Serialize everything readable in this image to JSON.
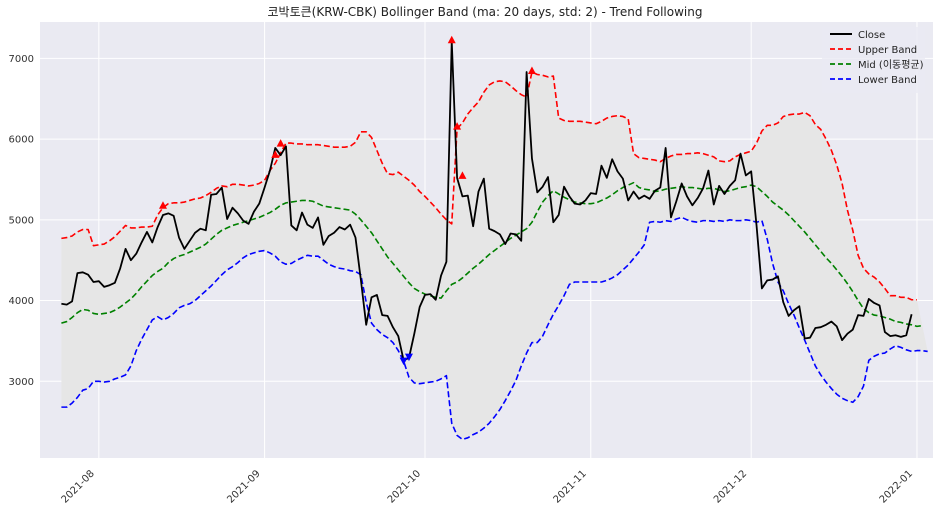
{
  "chart_data": {
    "type": "line",
    "title": "코박토큰(KRW-CBK) Bollinger Band (ma: 20 days, std: 2) - Trend Following",
    "xlabel": "",
    "ylabel": "",
    "grid": true,
    "legend_position": "top-right",
    "xlim": [
      "2021-07-21",
      "2022-01-04"
    ],
    "ylim": [
      2050,
      7450
    ],
    "x_ticks": [
      "2021-08",
      "2021-09",
      "2021-10",
      "2021-11",
      "2021-12",
      "2022-01"
    ],
    "y_ticks": [
      3000,
      4000,
      5000,
      6000,
      7000
    ],
    "start_date": "2021-07-25",
    "colors": {
      "close": "#000000",
      "upper": "#ff0000",
      "mid": "#008000",
      "lower": "#0000ff",
      "band_fill": "#e6e6e6",
      "plot_bg": "#eaeaf2",
      "grid": "#ffffff"
    },
    "series": [
      {
        "name": "Close",
        "style": "solid",
        "values": [
          3960,
          3950,
          3990,
          4340,
          4350,
          4320,
          4230,
          4240,
          4170,
          4190,
          4220,
          4400,
          4640,
          4500,
          4580,
          4720,
          4850,
          4720,
          4910,
          5060,
          5080,
          5050,
          4780,
          4640,
          4740,
          4840,
          4890,
          4870,
          5310,
          5320,
          5400,
          5010,
          5150,
          5080,
          4990,
          4950,
          5100,
          5200,
          5400,
          5610,
          5890,
          5800,
          5910,
          4930,
          4870,
          5090,
          4940,
          4900,
          5030,
          4690,
          4800,
          4840,
          4910,
          4880,
          4940,
          4780,
          4260,
          3700,
          4040,
          4070,
          3820,
          3810,
          3670,
          3560,
          3260,
          3290,
          3590,
          3920,
          4070,
          4080,
          4010,
          4310,
          4480,
          7210,
          5520,
          5290,
          5300,
          4920,
          5350,
          5510,
          4890,
          4860,
          4820,
          4700,
          4830,
          4820,
          4740,
          6830,
          5760,
          5340,
          5410,
          5530,
          4970,
          5060,
          5410,
          5290,
          5200,
          5190,
          5240,
          5330,
          5320,
          5670,
          5520,
          5750,
          5600,
          5510,
          5240,
          5350,
          5260,
          5300,
          5260,
          5360,
          5400,
          5890,
          5030,
          5230,
          5450,
          5290,
          5180,
          5270,
          5390,
          5610,
          5190,
          5420,
          5320,
          5420,
          5490,
          5820,
          5550,
          5600,
          4930,
          4150,
          4250,
          4260,
          4300,
          3980,
          3810,
          3880,
          3930,
          3530,
          3540,
          3660,
          3670,
          3700,
          3740,
          3680,
          3510,
          3590,
          3640,
          3820,
          3810,
          4020,
          3970,
          3940,
          3610,
          3560,
          3570,
          3550,
          3570,
          3830
        ]
      },
      {
        "name": "Upper Band",
        "style": "dashed",
        "values": [
          4770,
          4780,
          4800,
          4850,
          4880,
          4880,
          4680,
          4690,
          4700,
          4740,
          4790,
          4860,
          4930,
          4900,
          4900,
          4910,
          4910,
          4920,
          5060,
          5150,
          5200,
          5210,
          5210,
          5220,
          5240,
          5260,
          5270,
          5300,
          5340,
          5390,
          5420,
          5410,
          5440,
          5440,
          5430,
          5420,
          5430,
          5450,
          5490,
          5610,
          5700,
          5830,
          5950,
          5950,
          5940,
          5940,
          5930,
          5930,
          5930,
          5920,
          5910,
          5900,
          5900,
          5900,
          5910,
          5960,
          6090,
          6090,
          6020,
          5860,
          5700,
          5570,
          5560,
          5590,
          5540,
          5490,
          5430,
          5350,
          5290,
          5220,
          5150,
          5070,
          5000,
          4950,
          6130,
          6200,
          6310,
          6390,
          6460,
          6580,
          6670,
          6710,
          6720,
          6710,
          6660,
          6600,
          6550,
          6520,
          6830,
          6800,
          6790,
          6770,
          6780,
          6260,
          6230,
          6220,
          6220,
          6220,
          6210,
          6200,
          6190,
          6220,
          6260,
          6280,
          6290,
          6280,
          6250,
          5820,
          5770,
          5760,
          5750,
          5740,
          5720,
          5760,
          5790,
          5810,
          5810,
          5820,
          5820,
          5830,
          5820,
          5800,
          5780,
          5730,
          5720,
          5730,
          5780,
          5810,
          5830,
          5850,
          5950,
          6100,
          6170,
          6170,
          6200,
          6280,
          6300,
          6310,
          6310,
          6330,
          6290,
          6180,
          6120,
          6000,
          5860,
          5680,
          5450,
          5120,
          4870,
          4560,
          4400,
          4330,
          4290,
          4230,
          4150,
          4060,
          4060,
          4040,
          4040,
          4010,
          4010
        ]
      },
      {
        "name": "Mid (이동평균)",
        "style": "dashed",
        "values": [
          3720,
          3740,
          3790,
          3850,
          3890,
          3880,
          3840,
          3830,
          3840,
          3850,
          3880,
          3920,
          3970,
          4020,
          4090,
          4170,
          4240,
          4310,
          4360,
          4400,
          4470,
          4520,
          4550,
          4570,
          4600,
          4630,
          4660,
          4700,
          4760,
          4820,
          4870,
          4900,
          4930,
          4950,
          4970,
          4990,
          5010,
          5030,
          5060,
          5090,
          5130,
          5180,
          5210,
          5220,
          5230,
          5240,
          5240,
          5230,
          5200,
          5170,
          5160,
          5150,
          5140,
          5130,
          5120,
          5070,
          5000,
          4920,
          4840,
          4740,
          4640,
          4540,
          4460,
          4380,
          4300,
          4220,
          4150,
          4110,
          4080,
          4060,
          4040,
          4030,
          4120,
          4200,
          4230,
          4280,
          4340,
          4400,
          4450,
          4510,
          4570,
          4620,
          4670,
          4720,
          4770,
          4810,
          4850,
          4890,
          4970,
          5100,
          5220,
          5300,
          5360,
          5320,
          5280,
          5250,
          5220,
          5210,
          5200,
          5200,
          5210,
          5240,
          5270,
          5310,
          5360,
          5400,
          5430,
          5460,
          5400,
          5380,
          5370,
          5350,
          5360,
          5380,
          5390,
          5400,
          5410,
          5400,
          5400,
          5390,
          5380,
          5390,
          5390,
          5370,
          5350,
          5360,
          5380,
          5400,
          5410,
          5430,
          5410,
          5350,
          5290,
          5220,
          5170,
          5120,
          5060,
          4990,
          4920,
          4850,
          4770,
          4690,
          4610,
          4530,
          4460,
          4380,
          4300,
          4210,
          4110,
          4000,
          3900,
          3850,
          3820,
          3810,
          3790,
          3770,
          3740,
          3730,
          3710,
          3700,
          3680,
          3690
        ]
      },
      {
        "name": "Lower Band",
        "style": "dashed",
        "values": [
          2680,
          2680,
          2730,
          2800,
          2890,
          2910,
          3000,
          3000,
          2990,
          3000,
          3030,
          3050,
          3080,
          3190,
          3380,
          3520,
          3640,
          3760,
          3800,
          3760,
          3790,
          3840,
          3910,
          3940,
          3960,
          4000,
          4060,
          4120,
          4180,
          4250,
          4320,
          4380,
          4420,
          4470,
          4530,
          4570,
          4590,
          4610,
          4620,
          4590,
          4550,
          4480,
          4450,
          4460,
          4500,
          4530,
          4560,
          4550,
          4550,
          4500,
          4450,
          4420,
          4400,
          4390,
          4370,
          4360,
          4320,
          3980,
          3720,
          3640,
          3580,
          3540,
          3480,
          3380,
          3250,
          3050,
          2980,
          2970,
          2980,
          2990,
          3000,
          3030,
          3070,
          2480,
          2330,
          2280,
          2300,
          2340,
          2370,
          2420,
          2480,
          2560,
          2650,
          2760,
          2880,
          3010,
          3190,
          3350,
          3480,
          3480,
          3560,
          3700,
          3830,
          3940,
          4060,
          4200,
          4230,
          4230,
          4230,
          4230,
          4230,
          4230,
          4250,
          4280,
          4320,
          4380,
          4440,
          4520,
          4600,
          4690,
          4970,
          4980,
          4970,
          4990,
          4980,
          5010,
          5030,
          5000,
          4980,
          4970,
          4990,
          4990,
          4980,
          4990,
          4980,
          5000,
          4990,
          4990,
          5000,
          4990,
          4970,
          4990,
          4760,
          4460,
          4230,
          4120,
          3960,
          3820,
          3660,
          3510,
          3350,
          3190,
          3080,
          2990,
          2910,
          2840,
          2790,
          2760,
          2740,
          2810,
          2940,
          3260,
          3310,
          3340,
          3350,
          3400,
          3440,
          3420,
          3390,
          3370,
          3380,
          3380,
          3370
        ]
      }
    ],
    "markers": {
      "buy_up": [
        {
          "x": "2021-08-13",
          "y": 5180
        },
        {
          "x": "2021-09-03",
          "y": 5810
        },
        {
          "x": "2021-09-04",
          "y": 5950
        },
        {
          "x": "2021-10-06",
          "y": 7230
        },
        {
          "x": "2021-10-07",
          "y": 6160
        },
        {
          "x": "2021-10-08",
          "y": 5550
        },
        {
          "x": "2021-10-21",
          "y": 6850
        }
      ],
      "sell_down": [
        {
          "x": "2021-09-27",
          "y": 3250
        },
        {
          "x": "2021-09-28",
          "y": 3300
        }
      ]
    }
  }
}
